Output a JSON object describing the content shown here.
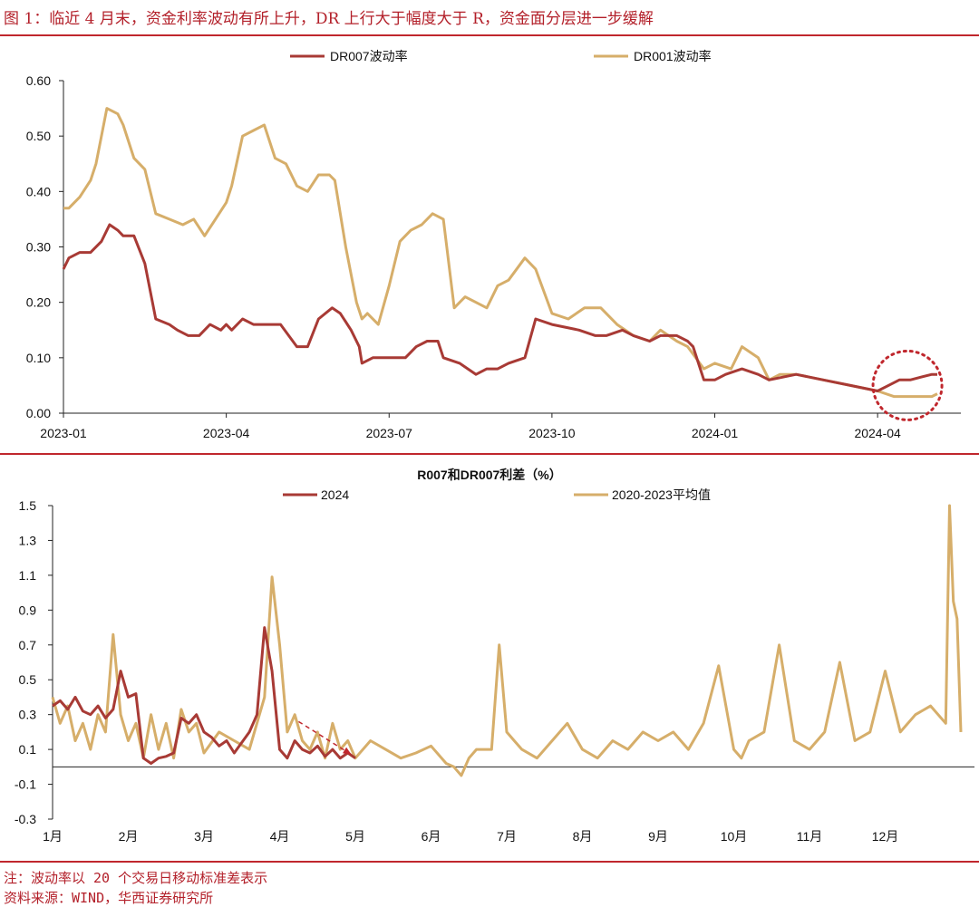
{
  "figure_title": "图 1：临近 4 月末，资金利率波动有所上升，DR 上行大于幅度大于 R，资金面分层进一步缓解",
  "footnote": "注：波动率以 20 个交易日移动标准差表示",
  "source": "资料来源：WIND，华西证券研究所",
  "colors": {
    "dr007": "#a83a35",
    "dr001": "#d6ae6a",
    "y2024": "#a83a35",
    "avg": "#d6ae6a",
    "accent": "#c0272d"
  },
  "chart_data": [
    {
      "type": "line",
      "title": "",
      "xlabel": "",
      "ylabel": "",
      "ylim": [
        0,
        0.6
      ],
      "yticks": [
        "0.00",
        "0.10",
        "0.20",
        "0.30",
        "0.40",
        "0.50",
        "0.60"
      ],
      "ytick_values": [
        0,
        0.1,
        0.2,
        0.3,
        0.4,
        0.5,
        0.6
      ],
      "xlim": [
        0,
        16.2
      ],
      "xticks": [
        "2023-01",
        "2023-04",
        "2023-07",
        "2023-10",
        "2024-01",
        "2024-04"
      ],
      "xtick_values": [
        0,
        3,
        6,
        9,
        12,
        15
      ],
      "legend_position": "top-center",
      "annotations": [
        "dotted circle around DR007/DR001 spread in 2024-04"
      ],
      "series": [
        {
          "name": "DR007波动率",
          "x": [
            0,
            0.1,
            0.3,
            0.5,
            0.7,
            0.85,
            1.0,
            1.1,
            1.3,
            1.5,
            1.7,
            1.95,
            2.1,
            2.3,
            2.5,
            2.7,
            2.9,
            3.0,
            3.1,
            3.3,
            3.5,
            3.7,
            4.0,
            4.3,
            4.5,
            4.7,
            4.95,
            5.1,
            5.3,
            5.45,
            5.5,
            5.7,
            6.0,
            6.3,
            6.5,
            6.7,
            6.9,
            7.0,
            7.3,
            7.6,
            7.8,
            8.0,
            8.2,
            8.5,
            8.7,
            9.0,
            9.5,
            9.8,
            10.0,
            10.3,
            10.5,
            10.8,
            11.0,
            11.3,
            11.5,
            11.6,
            11.8,
            12.0,
            12.2,
            12.5,
            12.8,
            13.0,
            13.5,
            14.0,
            14.5,
            15.0,
            15.2,
            15.4,
            15.6,
            15.8,
            16.0,
            16.1
          ],
          "values": [
            0.26,
            0.28,
            0.29,
            0.29,
            0.31,
            0.34,
            0.33,
            0.32,
            0.32,
            0.27,
            0.17,
            0.16,
            0.15,
            0.14,
            0.14,
            0.16,
            0.15,
            0.16,
            0.15,
            0.17,
            0.16,
            0.16,
            0.16,
            0.12,
            0.12,
            0.17,
            0.19,
            0.18,
            0.15,
            0.12,
            0.09,
            0.1,
            0.1,
            0.1,
            0.12,
            0.13,
            0.13,
            0.1,
            0.09,
            0.07,
            0.08,
            0.08,
            0.09,
            0.1,
            0.17,
            0.16,
            0.15,
            0.14,
            0.14,
            0.15,
            0.14,
            0.13,
            0.14,
            0.14,
            0.13,
            0.12,
            0.06,
            0.06,
            0.07,
            0.08,
            0.07,
            0.06,
            0.07,
            0.06,
            0.05,
            0.04,
            0.05,
            0.06,
            0.06,
            0.065,
            0.07,
            0.07
          ]
        },
        {
          "name": "DR001波动率",
          "x": [
            0,
            0.1,
            0.3,
            0.5,
            0.6,
            0.8,
            1.0,
            1.1,
            1.3,
            1.5,
            1.7,
            1.95,
            2.2,
            2.4,
            2.6,
            2.8,
            3.0,
            3.1,
            3.3,
            3.5,
            3.7,
            3.9,
            4.1,
            4.3,
            4.5,
            4.7,
            4.9,
            5.0,
            5.2,
            5.4,
            5.5,
            5.6,
            5.8,
            6.0,
            6.2,
            6.4,
            6.6,
            6.8,
            7.0,
            7.2,
            7.4,
            7.6,
            7.8,
            8.0,
            8.2,
            8.5,
            8.7,
            9.0,
            9.3,
            9.6,
            9.9,
            10.2,
            10.5,
            10.8,
            11.0,
            11.3,
            11.5,
            11.8,
            12.0,
            12.3,
            12.5,
            12.8,
            13.0,
            13.2,
            13.5,
            14.0,
            14.5,
            15.0,
            15.3,
            15.6,
            16.0,
            16.1
          ],
          "values": [
            0.37,
            0.37,
            0.39,
            0.42,
            0.45,
            0.55,
            0.54,
            0.52,
            0.46,
            0.44,
            0.36,
            0.35,
            0.34,
            0.35,
            0.32,
            0.35,
            0.38,
            0.41,
            0.5,
            0.51,
            0.52,
            0.46,
            0.45,
            0.41,
            0.4,
            0.43,
            0.43,
            0.42,
            0.3,
            0.2,
            0.17,
            0.18,
            0.16,
            0.23,
            0.31,
            0.33,
            0.34,
            0.36,
            0.35,
            0.19,
            0.21,
            0.2,
            0.19,
            0.23,
            0.24,
            0.28,
            0.26,
            0.18,
            0.17,
            0.19,
            0.19,
            0.16,
            0.14,
            0.13,
            0.15,
            0.13,
            0.12,
            0.08,
            0.09,
            0.08,
            0.12,
            0.1,
            0.06,
            0.07,
            0.07,
            0.06,
            0.05,
            0.04,
            0.03,
            0.03,
            0.03,
            0.035
          ]
        }
      ]
    },
    {
      "type": "line",
      "title": "R007和DR007利差（%）",
      "xlabel": "",
      "ylabel": "",
      "ylim": [
        -0.3,
        1.5
      ],
      "yticks": [
        "-0.3",
        "-0.1",
        "0.1",
        "0.3",
        "0.5",
        "0.7",
        "0.9",
        "1.1",
        "1.3",
        "1.5"
      ],
      "ytick_values": [
        -0.3,
        -0.1,
        0.1,
        0.3,
        0.5,
        0.7,
        0.9,
        1.1,
        1.3,
        1.5
      ],
      "xlim": [
        0,
        12
      ],
      "categories": [
        "1月",
        "2月",
        "3月",
        "4月",
        "5月",
        "6月",
        "7月",
        "8月",
        "9月",
        "10月",
        "11月",
        "12月"
      ],
      "legend_position": "top-center",
      "annotations": [
        "dashed downward arrow near late April"
      ],
      "series": [
        {
          "name": "2024",
          "x": [
            0,
            0.1,
            0.2,
            0.3,
            0.4,
            0.5,
            0.6,
            0.7,
            0.8,
            0.9,
            1.0,
            1.1,
            1.2,
            1.3,
            1.4,
            1.5,
            1.6,
            1.7,
            1.8,
            1.9,
            2.0,
            2.1,
            2.2,
            2.3,
            2.4,
            2.5,
            2.6,
            2.7,
            2.8,
            2.9,
            3.0,
            3.1,
            3.2,
            3.3,
            3.4,
            3.5,
            3.6,
            3.7,
            3.8,
            3.9,
            4.0
          ],
          "values": [
            0.35,
            0.38,
            0.33,
            0.4,
            0.32,
            0.3,
            0.35,
            0.28,
            0.33,
            0.55,
            0.4,
            0.42,
            0.05,
            0.02,
            0.05,
            0.06,
            0.08,
            0.28,
            0.25,
            0.3,
            0.2,
            0.17,
            0.12,
            0.15,
            0.08,
            0.14,
            0.2,
            0.3,
            0.8,
            0.55,
            0.1,
            0.05,
            0.15,
            0.1,
            0.08,
            0.12,
            0.06,
            0.1,
            0.05,
            0.08,
            0.05
          ]
        },
        {
          "name": "2020-2023平均值",
          "x": [
            0,
            0.1,
            0.2,
            0.3,
            0.4,
            0.5,
            0.6,
            0.7,
            0.8,
            0.9,
            1.0,
            1.1,
            1.2,
            1.3,
            1.4,
            1.5,
            1.6,
            1.7,
            1.8,
            1.9,
            2.0,
            2.2,
            2.4,
            2.6,
            2.8,
            2.9,
            3.0,
            3.1,
            3.2,
            3.3,
            3.4,
            3.5,
            3.6,
            3.7,
            3.8,
            3.9,
            4.0,
            4.2,
            4.4,
            4.6,
            4.8,
            5.0,
            5.2,
            5.3,
            5.4,
            5.5,
            5.6,
            5.8,
            5.9,
            6.0,
            6.1,
            6.2,
            6.4,
            6.6,
            6.8,
            7.0,
            7.2,
            7.4,
            7.6,
            7.8,
            8.0,
            8.2,
            8.4,
            8.6,
            8.8,
            9.0,
            9.1,
            9.2,
            9.4,
            9.6,
            9.8,
            10.0,
            10.2,
            10.4,
            10.6,
            10.8,
            11.0,
            11.2,
            11.4,
            11.6,
            11.8,
            11.85,
            11.9,
            11.95,
            12.0
          ],
          "values": [
            0.4,
            0.25,
            0.35,
            0.15,
            0.25,
            0.1,
            0.3,
            0.2,
            0.76,
            0.3,
            0.15,
            0.25,
            0.05,
            0.3,
            0.1,
            0.25,
            0.05,
            0.33,
            0.2,
            0.25,
            0.08,
            0.2,
            0.15,
            0.1,
            0.4,
            1.09,
            0.7,
            0.2,
            0.3,
            0.15,
            0.1,
            0.2,
            0.05,
            0.25,
            0.1,
            0.15,
            0.05,
            0.15,
            0.1,
            0.05,
            0.08,
            0.12,
            0.02,
            0.0,
            -0.05,
            0.05,
            0.1,
            0.1,
            0.7,
            0.2,
            0.15,
            0.1,
            0.05,
            0.15,
            0.25,
            0.1,
            0.05,
            0.15,
            0.1,
            0.2,
            0.15,
            0.2,
            0.1,
            0.25,
            0.58,
            0.1,
            0.05,
            0.15,
            0.2,
            0.7,
            0.15,
            0.1,
            0.2,
            0.6,
            0.15,
            0.2,
            0.55,
            0.2,
            0.3,
            0.35,
            0.25,
            1.5,
            0.95,
            0.85,
            0.2
          ]
        }
      ]
    }
  ]
}
